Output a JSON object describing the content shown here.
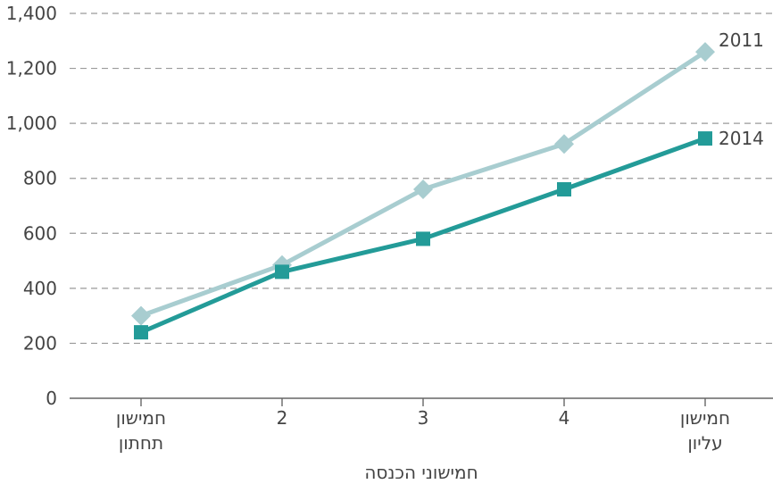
{
  "chart_data": {
    "type": "line",
    "categories": [
      [
        "חמישון",
        "תחתון"
      ],
      [
        "2"
      ],
      [
        "3"
      ],
      [
        "4"
      ],
      [
        "חמישון",
        "עליון"
      ]
    ],
    "series": [
      {
        "name": "2011",
        "marker": "diamond",
        "color": "#a8cdd0",
        "values": [
          300,
          485,
          760,
          925,
          1260
        ]
      },
      {
        "name": "2014",
        "marker": "square",
        "color": "#239b98",
        "values": [
          240,
          460,
          580,
          760,
          945
        ]
      }
    ],
    "xlabel": "חמישוני הכנסה",
    "ylabel": "",
    "ylim": [
      0,
      1400
    ],
    "yticks": [
      0,
      200,
      400,
      600,
      800,
      1000,
      1200,
      1400
    ],
    "ytick_labels": [
      "0",
      "200",
      "400",
      "600",
      "800",
      "1,000",
      "1,200",
      "1,400"
    ],
    "grid": true,
    "grid_style": "dashed",
    "legend": "inline at line ends"
  }
}
